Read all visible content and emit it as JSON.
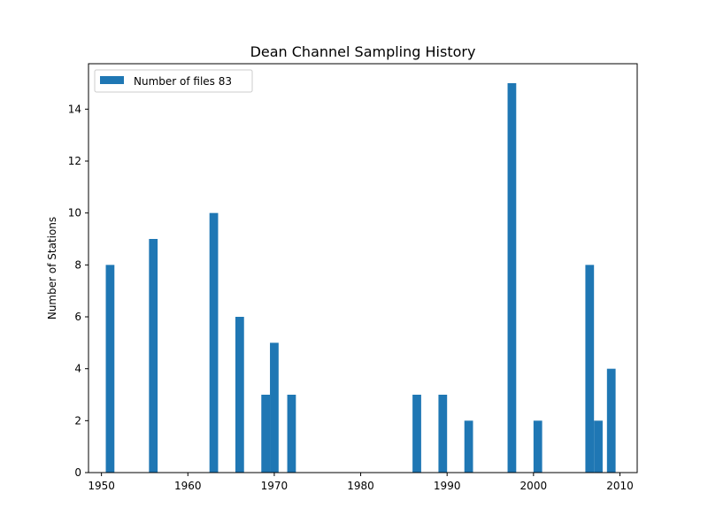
{
  "chart_data": {
    "type": "bar",
    "title": "Dean Channel Sampling History",
    "xlabel": "",
    "ylabel": "Number of Stations",
    "xlim": [
      1948.5,
      2012.0
    ],
    "ylim": [
      0,
      15.75
    ],
    "xticks": [
      1950,
      1960,
      1970,
      1980,
      1990,
      2000,
      2010
    ],
    "yticks": [
      0,
      2,
      4,
      6,
      8,
      10,
      12,
      14
    ],
    "bar_width_years": 1.0,
    "color": "#1f77b4",
    "grid": false,
    "legend_position": "upper-left",
    "series": [
      {
        "name": "Number of files 83",
        "bars": [
          {
            "x": 1951,
            "value": 8
          },
          {
            "x": 1956,
            "value": 9
          },
          {
            "x": 1963,
            "value": 10
          },
          {
            "x": 1966,
            "value": 6
          },
          {
            "x": 1969,
            "value": 3
          },
          {
            "x": 1970,
            "value": 5
          },
          {
            "x": 1972,
            "value": 3
          },
          {
            "x": 1986.5,
            "value": 3
          },
          {
            "x": 1989.5,
            "value": 3
          },
          {
            "x": 1992.5,
            "value": 2
          },
          {
            "x": 1997.5,
            "value": 15
          },
          {
            "x": 2000.5,
            "value": 2
          },
          {
            "x": 2006.5,
            "value": 8
          },
          {
            "x": 2007.5,
            "value": 2
          },
          {
            "x": 2009,
            "value": 4
          }
        ]
      }
    ]
  }
}
